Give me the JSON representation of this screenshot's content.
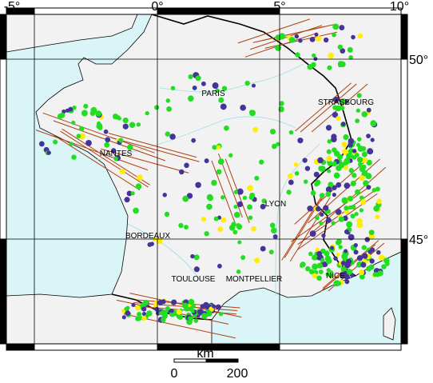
{
  "map": {
    "longitude_labels": [
      "-5°",
      "0°",
      "5°",
      "10°"
    ],
    "latitude_labels": [
      "50°",
      "45°"
    ],
    "cities": [
      "PARIS",
      "STRASBOURG",
      "NANTES",
      "LYON",
      "BORDEAUX",
      "TOULOUSE",
      "MONTPELLIER",
      "NICE"
    ],
    "scale_bar": {
      "unit": "km",
      "labels": [
        "0",
        "200"
      ]
    }
  }
}
